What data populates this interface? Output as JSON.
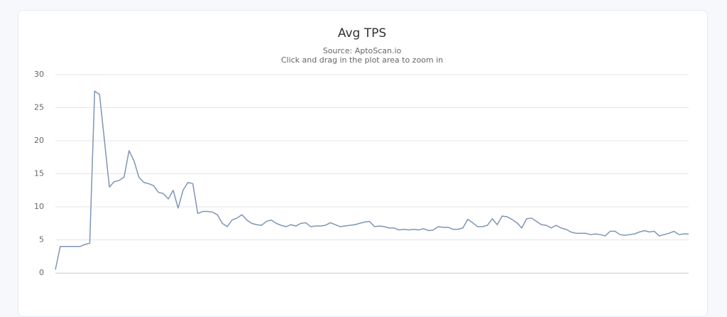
{
  "chart_data": {
    "type": "line",
    "title": "Avg TPS",
    "subtitle": "Source: AptoScan.io",
    "note": "Click and drag in the plot area to zoom in",
    "color": "#7f95b5",
    "ylim": [
      0,
      30
    ],
    "yticks": [
      0,
      5,
      10,
      15,
      20,
      25,
      30
    ],
    "grid": true,
    "values": [
      0.5,
      4,
      4,
      4,
      4,
      4,
      4.3,
      4.5,
      27.5,
      27,
      20,
      13,
      13.8,
      14,
      14.5,
      18.5,
      17,
      14.5,
      13.7,
      13.5,
      13.2,
      12.2,
      12,
      11.2,
      12.5,
      9.8,
      12.5,
      13.7,
      13.5,
      9,
      9.3,
      9.3,
      9.2,
      8.8,
      7.5,
      7,
      8,
      8.3,
      8.8,
      8,
      7.5,
      7.3,
      7.2,
      7.8,
      8,
      7.5,
      7.2,
      7,
      7.3,
      7.1,
      7.5,
      7.6,
      7,
      7.1,
      7.1,
      7.2,
      7.6,
      7.3,
      7,
      7.1,
      7.2,
      7.3,
      7.5,
      7.7,
      7.8,
      7,
      7.1,
      7,
      6.8,
      6.8,
      6.5,
      6.6,
      6.5,
      6.6,
      6.5,
      6.7,
      6.4,
      6.5,
      7,
      6.9,
      6.9,
      6.6,
      6.6,
      6.8,
      8.1,
      7.6,
      7,
      7,
      7.2,
      8.2,
      7.3,
      8.6,
      8.5,
      8.1,
      7.6,
      6.8,
      8.2,
      8.3,
      7.8,
      7.3,
      7.2,
      6.8,
      7.2,
      6.8,
      6.6,
      6.2,
      6,
      6,
      6,
      5.8,
      5.9,
      5.8,
      5.6,
      6.3,
      6.3,
      5.8,
      5.7,
      5.8,
      5.9,
      6.2,
      6.4,
      6.2,
      6.3,
      5.6,
      5.8,
      6,
      6.3,
      5.8,
      5.9,
      5.9
    ]
  }
}
